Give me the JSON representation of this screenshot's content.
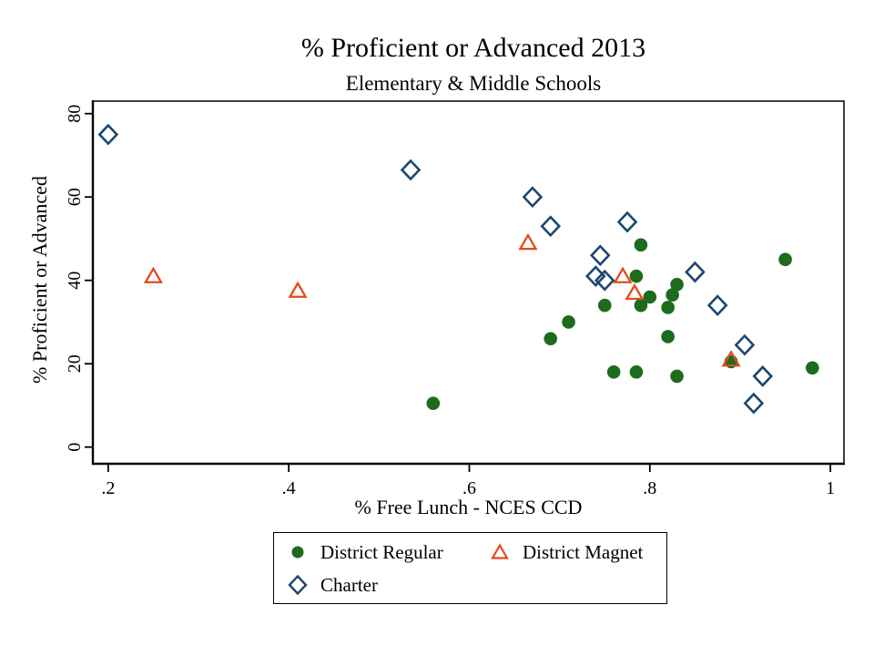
{
  "chart_data": {
    "type": "scatter",
    "title": "% Proficient or Advanced 2013",
    "subtitle": "Elementary & Middle Schools",
    "xlabel": "% Free Lunch - NCES CCD",
    "ylabel": "% Proficient or Advanced",
    "xlim": [
      0.183,
      1.015
    ],
    "ylim": [
      -4,
      83
    ],
    "x_ticks": [
      0.2,
      0.4,
      0.6,
      0.8,
      1
    ],
    "x_tick_labels": [
      ".2",
      ".4",
      ".6",
      ".8",
      "1"
    ],
    "y_ticks": [
      0,
      20,
      40,
      60,
      80
    ],
    "y_tick_labels": [
      "0",
      "20",
      "40",
      "60",
      "80"
    ],
    "grid": false,
    "legend_position": "bottom",
    "series": [
      {
        "name": "District Regular",
        "marker": "filled-circle",
        "color": "#1d6b1d",
        "points": [
          [
            0.56,
            10.5
          ],
          [
            0.69,
            26
          ],
          [
            0.71,
            30
          ],
          [
            0.75,
            34
          ],
          [
            0.76,
            18
          ],
          [
            0.785,
            18
          ],
          [
            0.79,
            48.5
          ],
          [
            0.785,
            41
          ],
          [
            0.79,
            34
          ],
          [
            0.8,
            36
          ],
          [
            0.82,
            26.5
          ],
          [
            0.82,
            33.5
          ],
          [
            0.825,
            36.5
          ],
          [
            0.83,
            39
          ],
          [
            0.83,
            17
          ],
          [
            0.89,
            20.5
          ],
          [
            0.95,
            45
          ],
          [
            0.98,
            19
          ]
        ]
      },
      {
        "name": "Charter",
        "marker": "open-diamond",
        "color": "#1a476f",
        "points": [
          [
            0.2,
            75
          ],
          [
            0.535,
            66.5
          ],
          [
            0.67,
            60
          ],
          [
            0.69,
            53
          ],
          [
            0.745,
            46
          ],
          [
            0.74,
            41
          ],
          [
            0.75,
            40
          ],
          [
            0.775,
            54
          ],
          [
            0.85,
            42
          ],
          [
            0.875,
            34
          ],
          [
            0.905,
            24.5
          ],
          [
            0.915,
            10.5
          ],
          [
            0.925,
            17
          ]
        ]
      },
      {
        "name": "District Magnet",
        "marker": "open-triangle",
        "color": "#e34b1e",
        "points": [
          [
            0.25,
            41
          ],
          [
            0.41,
            37.5
          ],
          [
            0.665,
            49
          ],
          [
            0.77,
            41
          ],
          [
            0.783,
            37
          ],
          [
            0.89,
            21
          ]
        ]
      }
    ]
  }
}
